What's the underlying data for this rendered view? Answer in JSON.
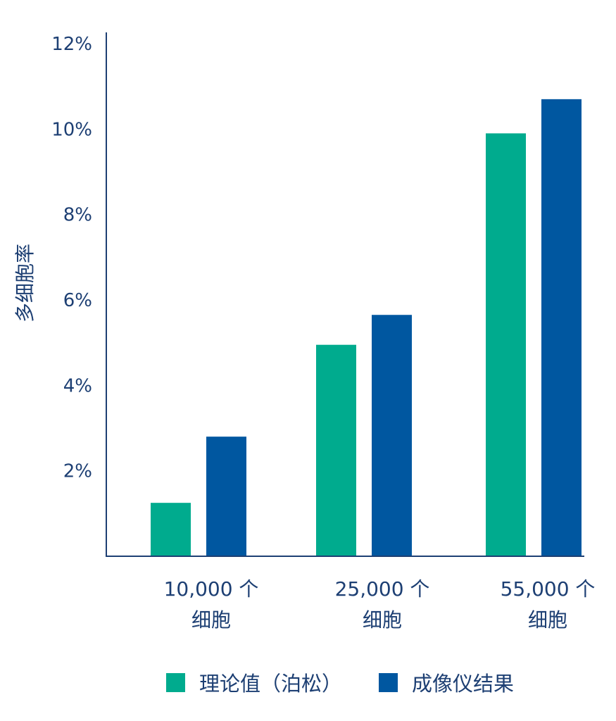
{
  "chart_data": {
    "type": "bar",
    "ylabel": "多细胞率",
    "ylim": [
      0,
      12
    ],
    "yticks": [
      "12%",
      "10%",
      "8%",
      "6%",
      "4%",
      "2%"
    ],
    "categories": [
      [
        "10,000 个",
        "细胞"
      ],
      [
        "25,000 个",
        "细胞"
      ],
      [
        "55,000 个",
        "细胞"
      ]
    ],
    "series": [
      {
        "name": "理论值（泊松）",
        "color": "#00ab8e",
        "values": [
          1.25,
          4.95,
          9.9
        ]
      },
      {
        "name": "成像仪结果",
        "color": "#0057a0",
        "values": [
          2.8,
          5.65,
          10.7
        ]
      }
    ],
    "axis_color": "#1d3f73",
    "grid": false,
    "legend_position": "bottom"
  }
}
